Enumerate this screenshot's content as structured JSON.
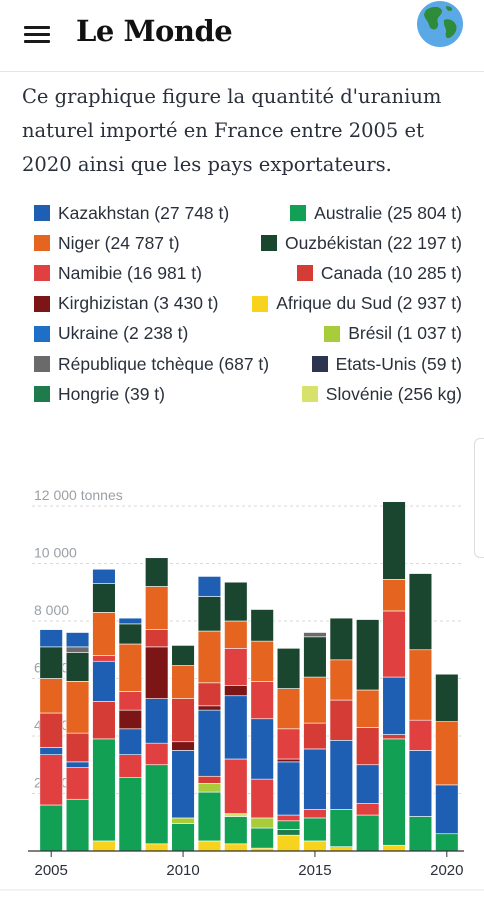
{
  "header": {
    "logo": "Le Monde",
    "menu_icon": "hamburger-menu-icon",
    "profile_icon": "globe-icon"
  },
  "intro": "Ce graphique figure la quantité d'uranium naturel importé en France entre 2005 et 2020 ainsi que les pays exportateurs.",
  "colors": {
    "Kazakhstan": "#1f5fb3",
    "Australie": "#12a055",
    "Niger": "#e46420",
    "Ouzbékistan": "#1a4630",
    "Namibie": "#e14040",
    "Canada": "#d63c36",
    "Kirghizistan": "#7c1515",
    "Afrique du Sud": "#f7d31f",
    "Ukraine": "#1e6fc8",
    "Brésil": "#a9cc3a",
    "République tchèque": "#6a6a6a",
    "Etats-Unis": "#2d3452",
    "Hongrie": "#1f7a4c",
    "Slovénie": "#d6e26a"
  },
  "legend": [
    {
      "name": "Kazakhstan",
      "label": "Kazakhstan (27 748 t)"
    },
    {
      "name": "Australie",
      "label": "Australie (25 804 t)"
    },
    {
      "name": "Niger",
      "label": "Niger (24 787 t)"
    },
    {
      "name": "Ouzbékistan",
      "label": "Ouzbékistan (22 197 t)"
    },
    {
      "name": "Namibie",
      "label": "Namibie (16 981 t)"
    },
    {
      "name": "Canada",
      "label": "Canada (10 285 t)"
    },
    {
      "name": "Kirghizistan",
      "label": "Kirghizistan (3 430 t)"
    },
    {
      "name": "Afrique du Sud",
      "label": "Afrique du Sud (2 937 t)"
    },
    {
      "name": "Ukraine",
      "label": "Ukraine (2 238 t)"
    },
    {
      "name": "Brésil",
      "label": "Brésil (1 037 t)"
    },
    {
      "name": "République tchèque",
      "label": "République tchèque (687 t)"
    },
    {
      "name": "Etats-Unis",
      "label": "Etats-Unis (59 t)"
    },
    {
      "name": "Hongrie",
      "label": "Hongrie (39 t)"
    },
    {
      "name": "Slovénie",
      "label": "Slovénie (256 kg)"
    }
  ],
  "chart_data": {
    "type": "bar",
    "stacked": true,
    "title": "",
    "xlabel": "",
    "ylabel": "",
    "ylim": [
      0,
      12000
    ],
    "yticks": [
      0,
      2000,
      4000,
      6000,
      8000,
      10000,
      12000
    ],
    "ytick_labels": [
      "",
      "2 000",
      "4 000",
      "6 000",
      "8 000",
      "10 000",
      "12 000 tonnes"
    ],
    "xtick_labels": [
      "2005",
      "2010",
      "2015",
      "2020"
    ],
    "xtick_years": [
      2005,
      2010,
      2015,
      2020
    ],
    "grid": true,
    "years": [
      2005,
      2006,
      2007,
      2008,
      2009,
      2010,
      2011,
      2012,
      2013,
      2014,
      2015,
      2016,
      2017,
      2018,
      2019,
      2020
    ],
    "stacks": [
      [
        {
          "s": "Australie",
          "v": 1600
        },
        {
          "s": "Namibie",
          "v": 1750
        },
        {
          "s": "Kazakhstan",
          "v": 250
        },
        {
          "s": "Canada",
          "v": 1200
        },
        {
          "s": "Niger",
          "v": 1200
        },
        {
          "s": "Ouzbékistan",
          "v": 1100
        },
        {
          "s": "Kazakhstan",
          "v": 600
        }
      ],
      [
        {
          "s": "Australie",
          "v": 1800
        },
        {
          "s": "Namibie",
          "v": 1100
        },
        {
          "s": "Kazakhstan",
          "v": 200
        },
        {
          "s": "Canada",
          "v": 1000
        },
        {
          "s": "Niger",
          "v": 1800
        },
        {
          "s": "Ouzbékistan",
          "v": 1000
        },
        {
          "s": "République tchèque",
          "v": 200
        },
        {
          "s": "Kazakhstan",
          "v": 500
        }
      ],
      [
        {
          "s": "Afrique du Sud",
          "v": 350
        },
        {
          "s": "Australie",
          "v": 3550
        },
        {
          "s": "Canada",
          "v": 1300
        },
        {
          "s": "Kazakhstan",
          "v": 1400
        },
        {
          "s": "Namibie",
          "v": 200
        },
        {
          "s": "Niger",
          "v": 1500
        },
        {
          "s": "Ouzbékistan",
          "v": 1000
        },
        {
          "s": "Kazakhstan",
          "v": 500
        }
      ],
      [
        {
          "s": "Australie",
          "v": 2550
        },
        {
          "s": "Namibie",
          "v": 800
        },
        {
          "s": "Kazakhstan",
          "v": 900
        },
        {
          "s": "Kirghizistan",
          "v": 650
        },
        {
          "s": "Namibie",
          "v": 650
        },
        {
          "s": "Niger",
          "v": 1650
        },
        {
          "s": "Ouzbékistan",
          "v": 700
        },
        {
          "s": "Kazakhstan",
          "v": 200
        }
      ],
      [
        {
          "s": "Afrique du Sud",
          "v": 250
        },
        {
          "s": "Australie",
          "v": 2750
        },
        {
          "s": "Namibie",
          "v": 750
        },
        {
          "s": "Kazakhstan",
          "v": 1550
        },
        {
          "s": "Kirghizistan",
          "v": 1800
        },
        {
          "s": "Canada",
          "v": 600
        },
        {
          "s": "Niger",
          "v": 1500
        },
        {
          "s": "Ouzbékistan",
          "v": 1000
        }
      ],
      [
        {
          "s": "Australie",
          "v": 950
        },
        {
          "s": "Brésil",
          "v": 200
        },
        {
          "s": "Kazakhstan",
          "v": 2350
        },
        {
          "s": "Kirghizistan",
          "v": 300
        },
        {
          "s": "Canada",
          "v": 1500
        },
        {
          "s": "Niger",
          "v": 1150
        },
        {
          "s": "Ouzbékistan",
          "v": 700
        }
      ],
      [
        {
          "s": "Afrique du Sud",
          "v": 350
        },
        {
          "s": "Australie",
          "v": 1700
        },
        {
          "s": "Brésil",
          "v": 300
        },
        {
          "s": "Canada",
          "v": 250
        },
        {
          "s": "Kazakhstan",
          "v": 2300
        },
        {
          "s": "Kirghizistan",
          "v": 150
        },
        {
          "s": "Canada",
          "v": 800
        },
        {
          "s": "Niger",
          "v": 1800
        },
        {
          "s": "Ouzbékistan",
          "v": 1200
        },
        {
          "s": "Kazakhstan",
          "v": 700
        }
      ],
      [
        {
          "s": "Afrique du Sud",
          "v": 250
        },
        {
          "s": "Australie",
          "v": 950
        },
        {
          "s": "Slovénie",
          "v": 100
        },
        {
          "s": "Namibie",
          "v": 1900
        },
        {
          "s": "Kazakhstan",
          "v": 2200
        },
        {
          "s": "Kirghizistan",
          "v": 350
        },
        {
          "s": "Namibie",
          "v": 1300
        },
        {
          "s": "Niger",
          "v": 950
        },
        {
          "s": "Ouzbékistan",
          "v": 1350
        }
      ],
      [
        {
          "s": "Afrique du Sud",
          "v": 100
        },
        {
          "s": "Australie",
          "v": 700
        },
        {
          "s": "Brésil",
          "v": 350
        },
        {
          "s": "Namibie",
          "v": 1350
        },
        {
          "s": "Kazakhstan",
          "v": 2100
        },
        {
          "s": "Namibie",
          "v": 1300
        },
        {
          "s": "Niger",
          "v": 1400
        },
        {
          "s": "Ouzbékistan",
          "v": 1100
        }
      ],
      [
        {
          "s": "Afrique du Sud",
          "v": 550
        },
        {
          "s": "Hongrie",
          "v": 200
        },
        {
          "s": "Australie",
          "v": 300
        },
        {
          "s": "Namibie",
          "v": 200
        },
        {
          "s": "Kazakhstan",
          "v": 1850
        },
        {
          "s": "Kirghizistan",
          "v": 100
        },
        {
          "s": "Namibie",
          "v": 1050
        },
        {
          "s": "Niger",
          "v": 1400
        },
        {
          "s": "Ouzbékistan",
          "v": 1400
        }
      ],
      [
        {
          "s": "Afrique du Sud",
          "v": 350
        },
        {
          "s": "Australie",
          "v": 800
        },
        {
          "s": "Namibie",
          "v": 300
        },
        {
          "s": "Kazakhstan",
          "v": 2100
        },
        {
          "s": "Canada",
          "v": 900
        },
        {
          "s": "Niger",
          "v": 1600
        },
        {
          "s": "Ouzbékistan",
          "v": 1400
        },
        {
          "s": "République tchèque",
          "v": 150
        }
      ],
      [
        {
          "s": "Afrique du Sud",
          "v": 150
        },
        {
          "s": "Australie",
          "v": 1300
        },
        {
          "s": "Kazakhstan",
          "v": 2400
        },
        {
          "s": "Canada",
          "v": 1400
        },
        {
          "s": "Niger",
          "v": 1400
        },
        {
          "s": "Ouzbékistan",
          "v": 1450
        }
      ],
      [
        {
          "s": "Australie",
          "v": 1250
        },
        {
          "s": "Namibie",
          "v": 400
        },
        {
          "s": "Kazakhstan",
          "v": 1350
        },
        {
          "s": "Canada",
          "v": 1300
        },
        {
          "s": "Niger",
          "v": 1300
        },
        {
          "s": "Ouzbékistan",
          "v": 2450
        }
      ],
      [
        {
          "s": "Afrique du Sud",
          "v": 200
        },
        {
          "s": "Australie",
          "v": 3700
        },
        {
          "s": "Canada",
          "v": 150
        },
        {
          "s": "Kazakhstan",
          "v": 2000
        },
        {
          "s": "Namibie",
          "v": 2300
        },
        {
          "s": "Niger",
          "v": 1100
        },
        {
          "s": "Ouzbékistan",
          "v": 2700
        }
      ],
      [
        {
          "s": "Australie",
          "v": 1200
        },
        {
          "s": "Kazakhstan",
          "v": 2300
        },
        {
          "s": "Namibie",
          "v": 1050
        },
        {
          "s": "Niger",
          "v": 2450
        },
        {
          "s": "Ouzbékistan",
          "v": 2650
        }
      ],
      [
        {
          "s": "Australie",
          "v": 600
        },
        {
          "s": "Kazakhstan",
          "v": 1700
        },
        {
          "s": "Niger",
          "v": 2200
        },
        {
          "s": "Ouzbékistan",
          "v": 1650
        }
      ]
    ]
  }
}
